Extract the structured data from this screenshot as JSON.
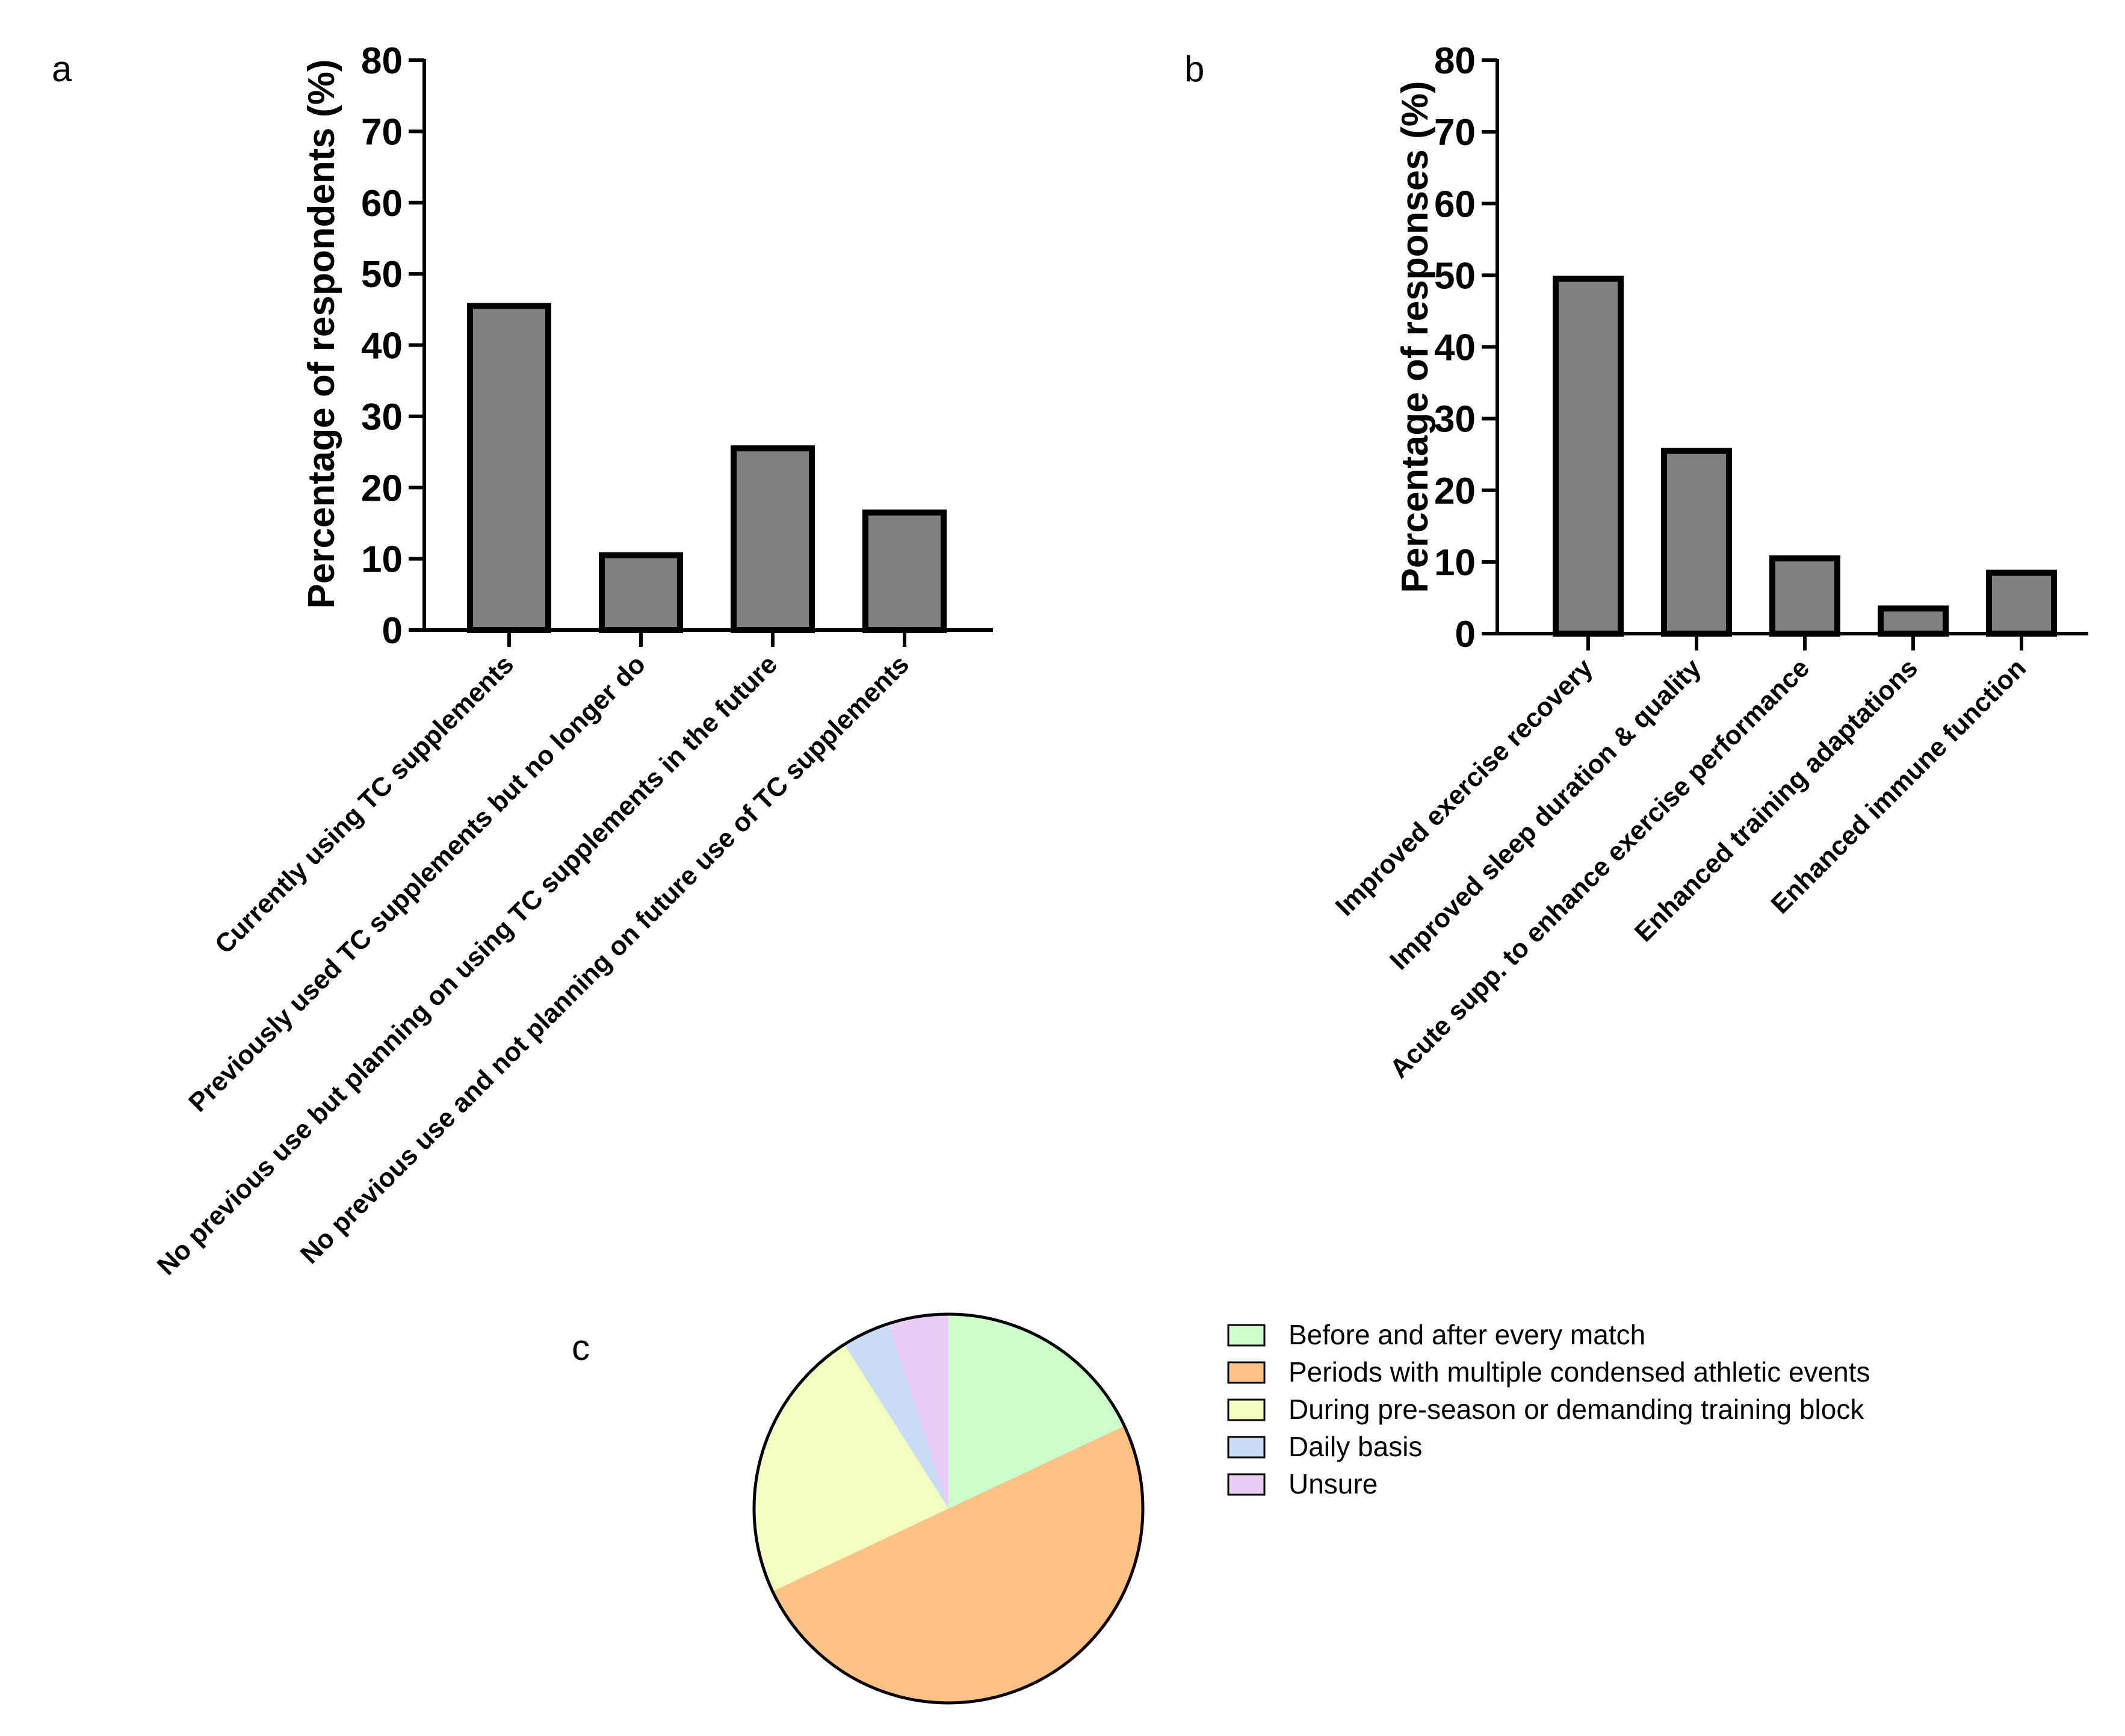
{
  "chart_data": [
    {
      "panel": "a",
      "type": "bar",
      "title": "",
      "xlabel": "",
      "ylabel": "Percentage of respondents (%)",
      "ylim": [
        0,
        80
      ],
      "yticks": [
        0,
        10,
        20,
        30,
        40,
        50,
        60,
        70,
        80
      ],
      "categories": [
        "Currently using TC supplements",
        "Previously used TC supplements but no longer do",
        "No previous use but planning on using TC supplements in the future",
        "No previous use and not planning on future use of TC supplements"
      ],
      "values": [
        45.5,
        10.5,
        25.5,
        16.5
      ],
      "colors": {
        "bar": "#808080",
        "edge": "#000000"
      }
    },
    {
      "panel": "b",
      "type": "bar",
      "title": "",
      "xlabel": "",
      "ylabel": "Percentage of responses (%)",
      "ylim": [
        0,
        80
      ],
      "yticks": [
        0,
        10,
        20,
        30,
        40,
        50,
        60,
        70,
        80
      ],
      "categories": [
        "Improved exercise recovery",
        "Improved sleep duration & quality",
        "Acute supp. to enhance exercise performance",
        "Enhanced training adaptations",
        "Enhanced immune function"
      ],
      "values": [
        49.5,
        25.5,
        10.5,
        3.5,
        8.5
      ],
      "colors": {
        "bar": "#808080",
        "edge": "#000000"
      }
    },
    {
      "panel": "c",
      "type": "pie",
      "title": "",
      "labels": [
        "Before and after every match",
        "Periods with multiple condensed athletic events",
        "During pre-season or demanding training block",
        "Daily basis",
        "Unsure"
      ],
      "values": [
        18,
        50,
        23,
        4,
        5
      ],
      "colors": [
        "#CCFFCC",
        "#FFC285",
        "#F2FFBF",
        "#C8DCF5",
        "#EACCF5"
      ],
      "legend_position": "right"
    }
  ]
}
